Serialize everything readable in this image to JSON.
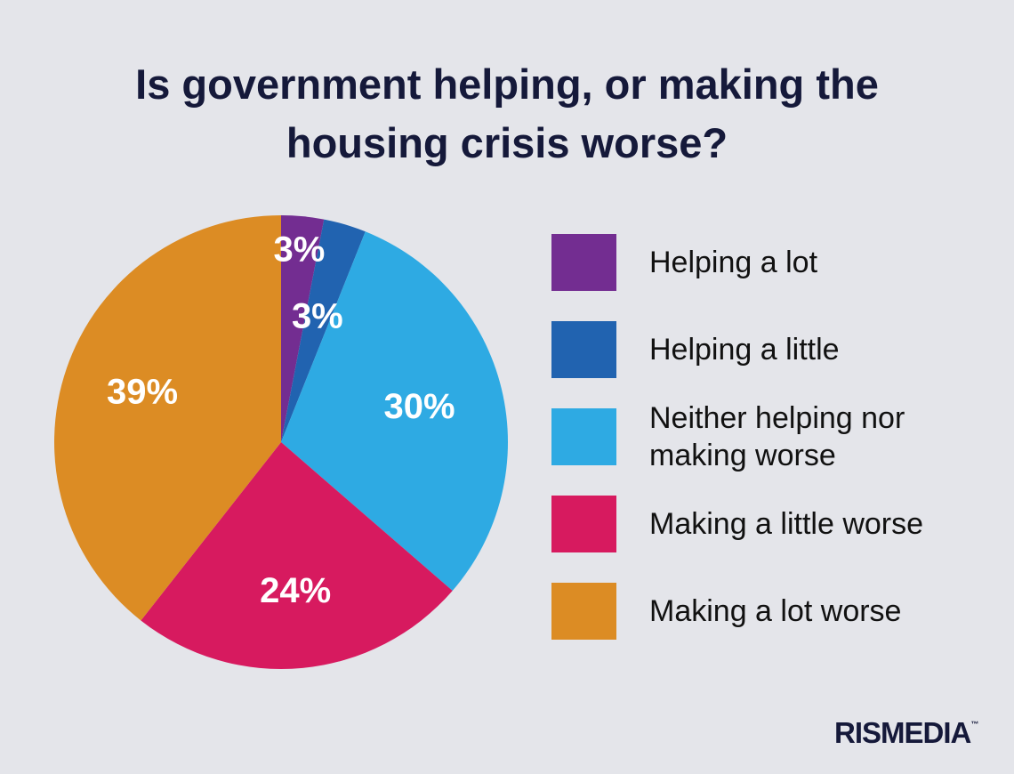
{
  "title": {
    "line1": "Is government helping, or making the",
    "line2": "housing crisis worse?"
  },
  "chart_data": {
    "type": "pie",
    "title": "Is government helping, or making the housing crisis worse?",
    "categories": [
      "Helping a lot",
      "Helping a little",
      "Neither helping nor making worse",
      "Making a little worse",
      "Making a lot worse"
    ],
    "values": [
      3,
      3,
      30,
      24,
      39
    ],
    "value_labels": [
      "3%",
      "3%",
      "30%",
      "24%",
      "39%"
    ],
    "colors": [
      "#732d91",
      "#2163b0",
      "#2eaae3",
      "#d71a5f",
      "#dc8c24"
    ],
    "legend_position": "right"
  },
  "legend": {
    "items": [
      {
        "label": "Helping a lot",
        "color": "#732d91"
      },
      {
        "label": "Helping a little",
        "color": "#2163b0"
      },
      {
        "label": "Neither helping nor making worse",
        "color": "#2eaae3"
      },
      {
        "label": "Making a little worse",
        "color": "#d71a5f"
      },
      {
        "label": "Making a lot worse",
        "color": "#dc8c24"
      }
    ]
  },
  "logo": {
    "text": "RISMEDIA",
    "mark": "™"
  }
}
